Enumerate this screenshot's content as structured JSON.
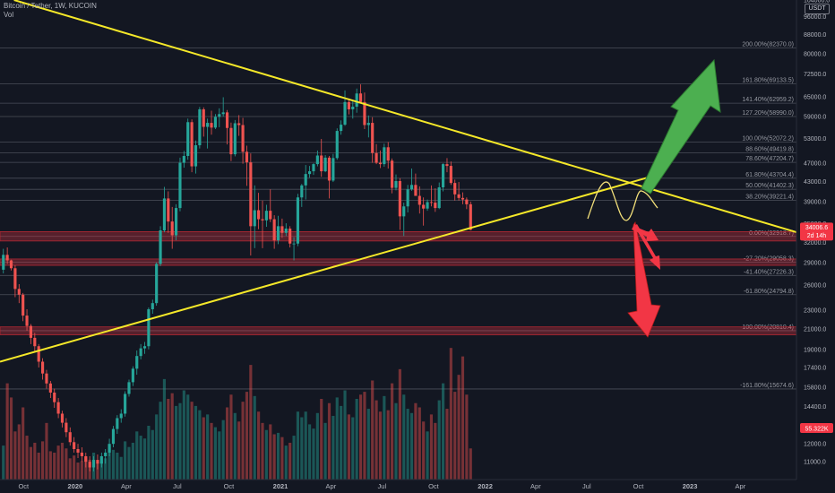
{
  "header": {
    "symbol": "Bitcoin / Tether, 1W, KUCOIN",
    "indicator": "Vol"
  },
  "currency_badge": "USDT",
  "chart_data": {
    "type": "candlestick",
    "y_scale": "log",
    "ylim": [
      10400,
      104000
    ],
    "xlim": [
      "2019-08-20",
      "2023-07-10"
    ],
    "x_ticks": [
      {
        "label": "Oct",
        "date": "2019-10-01"
      },
      {
        "label": "2020",
        "date": "2020-01-01",
        "bold": true
      },
      {
        "label": "Apr",
        "date": "2020-04-01"
      },
      {
        "label": "Jul",
        "date": "2020-07-01"
      },
      {
        "label": "Oct",
        "date": "2020-10-01"
      },
      {
        "label": "2021",
        "date": "2021-01-01",
        "bold": true
      },
      {
        "label": "Apr",
        "date": "2021-04-01"
      },
      {
        "label": "Jul",
        "date": "2021-07-01"
      },
      {
        "label": "Oct",
        "date": "2021-10-01"
      },
      {
        "label": "2022",
        "date": "2022-01-01",
        "bold": true
      },
      {
        "label": "Apr",
        "date": "2022-04-01"
      },
      {
        "label": "Jul",
        "date": "2022-07-01"
      },
      {
        "label": "Oct",
        "date": "2022-10-01"
      },
      {
        "label": "2023",
        "date": "2023-01-01",
        "bold": true
      },
      {
        "label": "Apr",
        "date": "2023-04-01"
      }
    ],
    "y_ticks": [
      11000,
      12000,
      13000,
      14400,
      15800,
      17400,
      19000,
      21000,
      23000,
      26000,
      29000,
      32000,
      35000,
      39000,
      43000,
      47000,
      53000,
      59000,
      65000,
      72500,
      80000,
      88000,
      96000,
      104000
    ],
    "current_price": {
      "value": 34006.6,
      "label": "34006.6",
      "countdown": "2d 14h",
      "color": "#f23645"
    },
    "volume_badge": {
      "label": "55.322K",
      "color": "#f23645"
    },
    "fib_levels": [
      {
        "label": "200.00%(82370.0)",
        "value": 82370.0
      },
      {
        "label": "161.80%(69133.5)",
        "value": 69133.5
      },
      {
        "label": "141.40%(62959.2)",
        "value": 62959.2
      },
      {
        "label": "127.20%(58990.0)",
        "value": 58990.0
      },
      {
        "label": "100.00%(52072.2)",
        "value": 52072.2
      },
      {
        "label": "88.60%(49419.8)",
        "value": 49419.8
      },
      {
        "label": "78.60%(47204.7)",
        "value": 47204.7
      },
      {
        "label": "61.80%(43704.4)",
        "value": 43704.4
      },
      {
        "label": "50.00%(41402.3)",
        "value": 41402.3
      },
      {
        "label": "38.20%(39221.4)",
        "value": 39221.4
      },
      {
        "label": "0.00%(32918.7)",
        "value": 32918.7
      },
      {
        "label": "-27.20%(29058.3)",
        "value": 29058.3
      },
      {
        "label": "-41.40%(27226.3)",
        "value": 27226.3
      },
      {
        "label": "-61.80%(24794.8)",
        "value": 24794.8
      },
      {
        "label": "-100.00%(20810.4)",
        "value": 20810.4
      },
      {
        "label": "-161.80%(15674.6)",
        "value": 15674.6
      }
    ],
    "zones": [
      {
        "low": 32200,
        "high": 33700
      },
      {
        "low": 28600,
        "high": 29500
      },
      {
        "low": 20400,
        "high": 21200
      }
    ],
    "trendlines": [
      {
        "name": "descending-resistance",
        "from": {
          "date": "2019-09-14",
          "price": 104000
        },
        "to": {
          "date": "2023-07-10",
          "price": 33600
        }
      },
      {
        "name": "ascending-support",
        "from": {
          "date": "2019-08-20",
          "price": 17900
        },
        "to": {
          "date": "2022-11-06",
          "price": 44500
        }
      }
    ],
    "candles": [
      [
        28000,
        31000,
        27500,
        30100
      ],
      [
        30100,
        31200,
        28800,
        29300
      ],
      [
        29300,
        29400,
        27900,
        28200
      ],
      [
        28200,
        28600,
        24500,
        25500
      ],
      [
        25500,
        26100,
        23800,
        24800
      ],
      [
        24800,
        25000,
        21800,
        22400
      ],
      [
        22400,
        23100,
        20800,
        21300
      ],
      [
        21300,
        21500,
        19500,
        20100
      ],
      [
        20100,
        20600,
        18800,
        19300
      ],
      [
        19300,
        19500,
        17400,
        17900
      ],
      [
        17900,
        18200,
        16400,
        16900
      ],
      [
        16900,
        17200,
        15700,
        16100
      ],
      [
        16100,
        16300,
        15000,
        15400
      ],
      [
        15400,
        15700,
        14300,
        14700
      ],
      [
        14700,
        15000,
        13600,
        13900
      ],
      [
        13900,
        14100,
        13000,
        13300
      ],
      [
        13300,
        13600,
        12400,
        12700
      ],
      [
        12700,
        13000,
        11900,
        12100
      ],
      [
        12100,
        12400,
        11500,
        11700
      ],
      [
        11700,
        12000,
        11200,
        11500
      ],
      [
        11500,
        11800,
        11000,
        11300
      ],
      [
        11300,
        11500,
        10700,
        11000
      ],
      [
        11000,
        11300,
        10500,
        10700
      ],
      [
        10700,
        11300,
        10500,
        11100
      ],
      [
        11100,
        11400,
        10600,
        10900
      ],
      [
        10900,
        11500,
        10700,
        11300
      ],
      [
        11300,
        11700,
        10900,
        11500
      ],
      [
        11500,
        12300,
        11300,
        12000
      ],
      [
        12000,
        13100,
        11800,
        12900
      ],
      [
        12900,
        13800,
        12600,
        13600
      ],
      [
        13600,
        14200,
        13300,
        13900
      ],
      [
        13900,
        15500,
        13700,
        15300
      ],
      [
        15300,
        16400,
        15100,
        16200
      ],
      [
        16200,
        17500,
        15900,
        17300
      ],
      [
        17300,
        18900,
        16800,
        18400
      ],
      [
        18400,
        19500,
        18100,
        19100
      ],
      [
        19100,
        19700,
        18600,
        19300
      ],
      [
        19300,
        23300,
        19000,
        23100
      ],
      [
        23100,
        24200,
        22600,
        23800
      ],
      [
        23800,
        29000,
        23500,
        28800
      ],
      [
        28800,
        34600,
        28500,
        33900
      ],
      [
        33900,
        41900,
        33600,
        39600
      ],
      [
        39600,
        41000,
        33500,
        35400
      ],
      [
        35400,
        38000,
        31000,
        33100
      ],
      [
        33100,
        38500,
        32300,
        37800
      ],
      [
        37800,
        48300,
        37200,
        47100
      ],
      [
        47100,
        49900,
        46000,
        48700
      ],
      [
        48700,
        58400,
        47800,
        57400
      ],
      [
        57400,
        58200,
        45000,
        46300
      ],
      [
        46300,
        52500,
        44700,
        51300
      ],
      [
        51300,
        61800,
        50500,
        61100
      ],
      [
        61100,
        61700,
        53500,
        56100
      ],
      [
        56100,
        58400,
        50500,
        57200
      ],
      [
        57200,
        60700,
        54000,
        55900
      ],
      [
        55900,
        59700,
        55500,
        58900
      ],
      [
        58900,
        61400,
        56000,
        59700
      ],
      [
        59700,
        64800,
        59000,
        60200
      ],
      [
        60200,
        60900,
        51500,
        55800
      ],
      [
        55800,
        57300,
        47500,
        49100
      ],
      [
        49100,
        58000,
        48600,
        57100
      ],
      [
        57100,
        59400,
        53700,
        56600
      ],
      [
        56600,
        58600,
        46900,
        49700
      ],
      [
        49700,
        51200,
        42100,
        47200
      ],
      [
        47200,
        49300,
        30000,
        34600
      ],
      [
        34600,
        42200,
        31100,
        37400
      ],
      [
        37400,
        40700,
        34100,
        35800
      ],
      [
        35800,
        39200,
        31100,
        35600
      ],
      [
        35600,
        38400,
        34500,
        37300
      ],
      [
        37300,
        41400,
        35300,
        35800
      ],
      [
        35800,
        36500,
        31000,
        32300
      ],
      [
        32300,
        36400,
        31700,
        34600
      ],
      [
        34600,
        35900,
        32700,
        33500
      ],
      [
        33500,
        35100,
        33000,
        34200
      ],
      [
        34200,
        34600,
        31200,
        31800
      ],
      [
        31800,
        32800,
        29300,
        31800
      ],
      [
        31800,
        40500,
        31400,
        39800
      ],
      [
        39800,
        42500,
        38000,
        42200
      ],
      [
        42200,
        46600,
        39400,
        44600
      ],
      [
        44600,
        46400,
        43800,
        45200
      ],
      [
        45200,
        47000,
        44400,
        46800
      ],
      [
        46800,
        50000,
        46300,
        48800
      ],
      [
        48800,
        52900,
        44000,
        45200
      ],
      [
        45200,
        48900,
        45000,
        48300
      ],
      [
        48300,
        48700,
        39600,
        43200
      ],
      [
        43200,
        49200,
        42900,
        48200
      ],
      [
        48200,
        55700,
        47800,
        55000
      ],
      [
        55000,
        57900,
        54000,
        56700
      ],
      [
        56700,
        67000,
        56400,
        63300
      ],
      [
        63300,
        64400,
        59600,
        61100
      ],
      [
        61100,
        63700,
        58400,
        61900
      ],
      [
        61900,
        67600,
        60100,
        66000
      ],
      [
        66000,
        69000,
        63100,
        63300
      ],
      [
        63300,
        66300,
        55500,
        56600
      ],
      [
        56600,
        59300,
        53300,
        57200
      ],
      [
        57200,
        58800,
        47100,
        49400
      ],
      [
        49400,
        51600,
        46800,
        47100
      ],
      [
        47100,
        50000,
        45900,
        46800
      ],
      [
        46800,
        51700,
        46200,
        50800
      ],
      [
        50800,
        52100,
        45800,
        47600
      ],
      [
        47600,
        48100,
        40600,
        41700
      ],
      [
        41700,
        44500,
        41200,
        43100
      ],
      [
        43100,
        43700,
        34000,
        36300
      ],
      [
        36300,
        38800,
        33000,
        38100
      ],
      [
        38100,
        42300,
        37000,
        41400
      ],
      [
        41400,
        45800,
        41100,
        42300
      ],
      [
        42300,
        44700,
        40100,
        40100
      ],
      [
        40100,
        42000,
        36800,
        38400
      ],
      [
        38400,
        39800,
        34700,
        37700
      ],
      [
        37700,
        39400,
        37300,
        38900
      ],
      [
        38900,
        42200,
        38100,
        38800
      ],
      [
        38800,
        41600,
        37100,
        37800
      ],
      [
        37800,
        42800,
        37600,
        41800
      ],
      [
        41800,
        47000,
        41000,
        46800
      ],
      [
        46800,
        48200,
        45000,
        46400
      ],
      [
        46400,
        47400,
        42300,
        42700
      ],
      [
        42700,
        43400,
        39200,
        40400
      ],
      [
        40400,
        42900,
        39200,
        39700
      ],
      [
        39700,
        40800,
        38500,
        39400
      ],
      [
        39400,
        39800,
        37600,
        38500
      ],
      [
        38500,
        39000,
        33900,
        34000
      ]
    ],
    "volumes": [
      2.4,
      6.8,
      5.8,
      3.4,
      3.9,
      5.1,
      3.1,
      2.3,
      2.6,
      1.9,
      2.7,
      4.0,
      2.0,
      1.9,
      2.4,
      2.6,
      2.2,
      1.5,
      1.7,
      1.2,
      1.3,
      1.6,
      1.4,
      1.9,
      1.2,
      1.3,
      1.5,
      2.4,
      2.1,
      1.9,
      1.6,
      2.7,
      2.3,
      2.6,
      3.4,
      3.1,
      2.9,
      3.8,
      3.5,
      4.6,
      5.5,
      7.1,
      5.7,
      6.1,
      5.2,
      5.4,
      6.3,
      6.0,
      5.5,
      5.2,
      4.9,
      4.4,
      4.6,
      4.0,
      3.7,
      3.4,
      4.2,
      5.1,
      6.0,
      4.7,
      4.1,
      5.5,
      6.2,
      8.1,
      5.9,
      4.8,
      4.0,
      3.5,
      3.9,
      3.2,
      3.3,
      3.0,
      2.4,
      2.6,
      3.1,
      4.8,
      4.4,
      4.8,
      3.9,
      3.6,
      4.7,
      5.7,
      4.0,
      5.4,
      4.5,
      5.8,
      5.2,
      6.3,
      4.6,
      4.4,
      5.7,
      6.0,
      6.2,
      5.0,
      7.0,
      5.6,
      4.8,
      5.9,
      4.9,
      6.8,
      5.4,
      7.8,
      6.0,
      5.0,
      4.7,
      5.4,
      5.1,
      4.1,
      3.4,
      4.6,
      4.0,
      5.6,
      6.8,
      5.0,
      9.3,
      6.2,
      7.4,
      8.7,
      6.0,
      2.2
    ]
  }
}
